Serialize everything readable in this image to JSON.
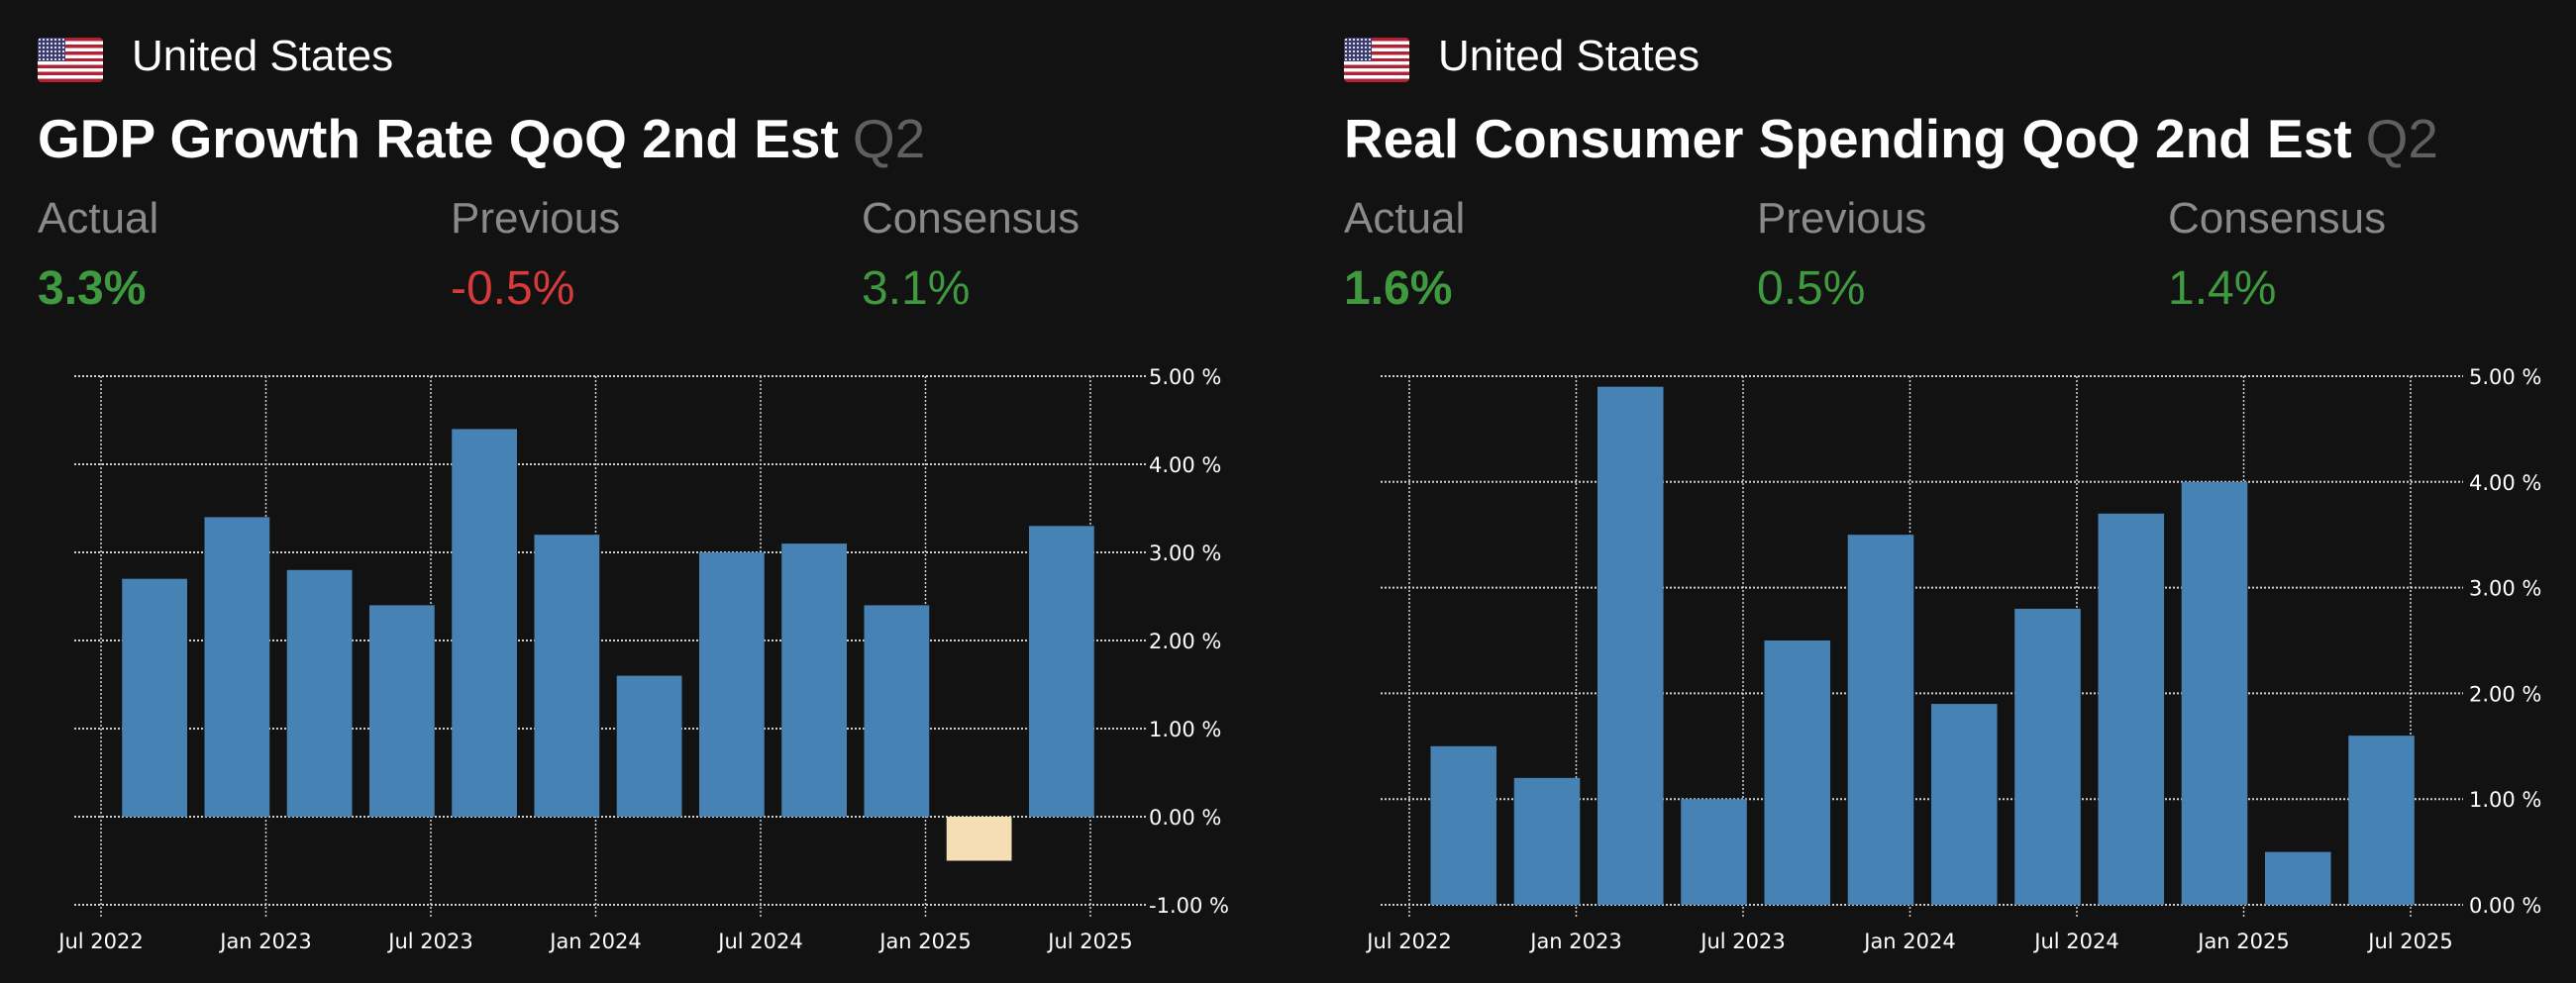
{
  "panels": [
    {
      "country": "United States",
      "title": "GDP Growth Rate QoQ 2nd Est",
      "period": "Q2",
      "actual_label": "Actual",
      "actual": "3.3%",
      "previous_label": "Previous",
      "previous": "-0.5%",
      "consensus_label": "Consensus",
      "consensus": "3.1%"
    },
    {
      "country": "United States",
      "title": "Real Consumer Spending QoQ 2nd Est",
      "period": "Q2",
      "actual_label": "Actual",
      "actual": "1.6%",
      "previous_label": "Previous",
      "previous": "0.5%",
      "consensus_label": "Consensus",
      "consensus": "1.4%"
    }
  ],
  "colors": {
    "bar": "#4682b4",
    "negative_bar": "#f5deb3",
    "positive": "#3f9a3f",
    "negative": "#d63a3a"
  },
  "chart_data": [
    {
      "type": "bar",
      "title": "GDP Growth Rate QoQ 2nd Est",
      "categories": [
        "Q3 2022",
        "Q4 2022",
        "Q1 2023",
        "Q2 2023",
        "Q3 2023",
        "Q4 2023",
        "Q1 2024",
        "Q2 2024",
        "Q3 2024",
        "Q4 2024",
        "Q1 2025",
        "Q2 2025"
      ],
      "values": [
        2.7,
        3.4,
        2.8,
        2.4,
        4.4,
        3.2,
        1.6,
        3.0,
        3.1,
        2.4,
        -0.5,
        3.3
      ],
      "ylim": [
        -1,
        5
      ],
      "yticks": [
        "-1.00 %",
        "0.00 %",
        "1.00 %",
        "2.00 %",
        "3.00 %",
        "4.00 %",
        "5.00 %"
      ],
      "xticks": [
        "Jul 2022",
        "Jan 2023",
        "Jul 2023",
        "Jan 2024",
        "Jul 2024",
        "Jan 2025",
        "Jul 2025"
      ],
      "grid": true
    },
    {
      "type": "bar",
      "title": "Real Consumer Spending QoQ 2nd Est",
      "categories": [
        "Q3 2022",
        "Q4 2022",
        "Q1 2023",
        "Q2 2023",
        "Q3 2023",
        "Q4 2023",
        "Q1 2024",
        "Q2 2024",
        "Q3 2024",
        "Q4 2024",
        "Q1 2025",
        "Q2 2025"
      ],
      "values": [
        1.5,
        1.2,
        4.9,
        1.0,
        2.5,
        3.5,
        1.9,
        2.8,
        3.7,
        4.0,
        0.5,
        1.6
      ],
      "ylim": [
        0,
        5
      ],
      "yticks": [
        "0.00 %",
        "1.00 %",
        "2.00 %",
        "3.00 %",
        "4.00 %",
        "5.00 %"
      ],
      "xticks": [
        "Jul 2022",
        "Jan 2023",
        "Jul 2023",
        "Jan 2024",
        "Jul 2024",
        "Jan 2025",
        "Jul 2025"
      ],
      "grid": true
    }
  ]
}
